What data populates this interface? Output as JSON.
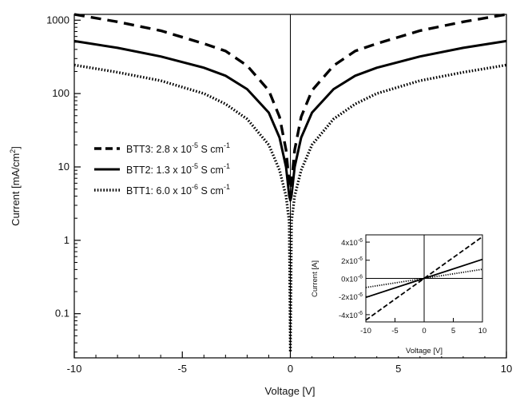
{
  "chart_data": [
    {
      "type": "line",
      "title": "",
      "xlabel": "Voltage [V]",
      "ylabel": "Current [mA/cm",
      "ylabel_sup": "2",
      "ylabel_suffix": "]",
      "xlim": [
        -10,
        10
      ],
      "ylim": [
        0.025,
        1200
      ],
      "yscale": "log",
      "x_ticks": [
        -10,
        -5,
        0,
        5,
        10
      ],
      "x_tick_labels": [
        "-10",
        "-5",
        "0",
        "5",
        "10"
      ],
      "y_ticks": [
        0.1,
        1,
        10,
        100,
        1000
      ],
      "y_tick_labels": [
        "0.1",
        "1",
        "10",
        "100",
        "1000"
      ],
      "grid": false,
      "legend_position": "center-left",
      "series": [
        {
          "name": "BTT3",
          "legend_label": "BTT3: 2.8 x 10",
          "legend_exp": "-5",
          "legend_unit": " S cm",
          "legend_unit_exp": "-1",
          "style": "dashed",
          "x": [
            -10,
            -8,
            -6,
            -4,
            -3,
            -2,
            -1,
            -0.5,
            -0.2,
            -0.05,
            0,
            0.05,
            0.2,
            0.5,
            1,
            2,
            3,
            4,
            6,
            8,
            10
          ],
          "values": [
            1200,
            950,
            720,
            480,
            380,
            240,
            110,
            48,
            17,
            6,
            5,
            6,
            17,
            48,
            110,
            240,
            380,
            480,
            720,
            950,
            1200
          ]
        },
        {
          "name": "BTT2",
          "legend_label": "BTT2: 1.3 x 10",
          "legend_exp": "-5",
          "legend_unit": " S cm",
          "legend_unit_exp": "-1",
          "style": "solid",
          "x": [
            -10,
            -8,
            -6,
            -4,
            -3,
            -2,
            -1,
            -0.5,
            -0.2,
            -0.05,
            0,
            0.05,
            0.2,
            0.5,
            1,
            2,
            3,
            4,
            6,
            8,
            10
          ],
          "values": [
            520,
            420,
            320,
            225,
            175,
            115,
            55,
            25,
            10,
            4,
            3.5,
            4,
            10,
            25,
            55,
            115,
            175,
            225,
            320,
            420,
            520
          ]
        },
        {
          "name": "BTT1",
          "legend_label": "BTT1: 6.0 x 10",
          "legend_exp": "-6",
          "legend_unit": " S cm",
          "legend_unit_exp": "-1",
          "style": "dotted",
          "x": [
            -10,
            -8,
            -6,
            -4,
            -3,
            -2,
            -1,
            -0.5,
            -0.2,
            -0.05,
            0,
            0.05,
            0.2,
            0.5,
            1,
            2,
            3,
            4,
            6,
            8,
            10
          ],
          "values": [
            245,
            195,
            150,
            100,
            72,
            45,
            20,
            9,
            4,
            1.8,
            0.03,
            1.8,
            4,
            9,
            20,
            45,
            72,
            100,
            150,
            195,
            245
          ]
        }
      ]
    },
    {
      "type": "line",
      "title": "",
      "xlabel": "Voltage [V]",
      "ylabel": "Current [A]",
      "xlim": [
        -10,
        10
      ],
      "ylim": [
        -4.8e-06,
        4.8e-06
      ],
      "x_ticks": [
        -10,
        -5,
        0,
        5,
        10
      ],
      "x_tick_labels": [
        "-10",
        "-5",
        "0",
        "5",
        "10"
      ],
      "y_ticks": [
        -4e-06,
        -2e-06,
        0,
        2e-06,
        4e-06
      ],
      "y_tick_mantissa": [
        "-4x10",
        "-2x10",
        "0x10",
        "2x10",
        "4x10"
      ],
      "y_tick_exp": [
        "-6",
        "-6",
        "-6",
        "-6",
        "-6"
      ],
      "grid": false,
      "series": [
        {
          "name": "BTT3",
          "style": "dashed",
          "x": [
            -10,
            -5,
            0,
            5,
            10
          ],
          "values": [
            -4.6e-06,
            -2.3e-06,
            0,
            2.3e-06,
            4.6e-06
          ]
        },
        {
          "name": "BTT2",
          "style": "solid",
          "x": [
            -10,
            -5,
            0,
            5,
            10
          ],
          "values": [
            -2.1e-06,
            -1.05e-06,
            0,
            1.05e-06,
            2.1e-06
          ]
        },
        {
          "name": "BTT1",
          "style": "dotted",
          "x": [
            -10,
            -5,
            0,
            5,
            10
          ],
          "values": [
            -1e-06,
            -5e-07,
            0,
            5e-07,
            1e-06
          ]
        }
      ]
    }
  ]
}
